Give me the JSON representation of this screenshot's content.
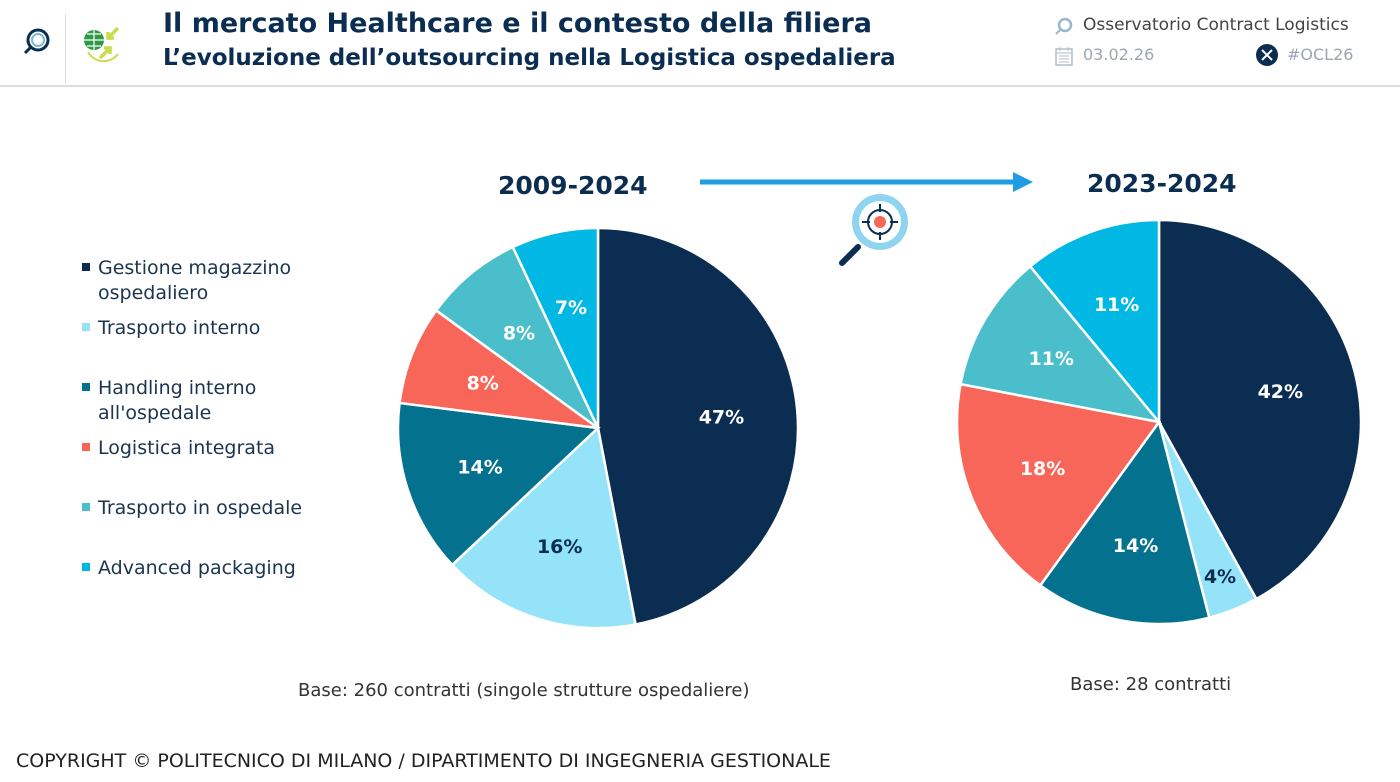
{
  "header": {
    "title": "Il mercato Healthcare e il contesto della filiera",
    "subtitle": "L’evoluzione dell’outsourcing nella Logistica ospedaliera",
    "org": "Osservatorio Contract Logistics",
    "date": "03.02.26",
    "hashtag": "#OCL26"
  },
  "footer": {
    "copyright": "COPYRIGHT © POLITECNICO DI MILANO / DIPARTIMENTO DI INGEGNERIA GESTIONALE"
  },
  "chart_data": [
    {
      "type": "pie",
      "title": "2009-2024",
      "note": "Base: 260 contratti (singole strutture ospedaliere)",
      "categories": [
        "Gestione magazzino ospedaliero",
        "Trasporto interno",
        "Handling interno all'ospedale",
        "Logistica integrata",
        "Trasporto in ospedale",
        "Advanced packaging"
      ],
      "values": [
        47,
        16,
        14,
        8,
        8,
        7
      ],
      "labels": [
        "47%",
        "16%",
        "14%",
        "8%",
        "8%",
        "7%"
      ],
      "legend": "left"
    },
    {
      "type": "pie",
      "title": "2023-2024",
      "note": "Base: 28 contratti",
      "categories": [
        "Gestione magazzino ospedaliero",
        "Trasporto interno",
        "Handling interno all'ospedale",
        "Logistica integrata",
        "Trasporto in ospedale",
        "Advanced packaging"
      ],
      "values": [
        42,
        4,
        14,
        18,
        11,
        11
      ],
      "labels": [
        "42%",
        "4%",
        "14%",
        "18%",
        "11%",
        "11%"
      ]
    }
  ],
  "legend": {
    "items": [
      {
        "label1": "Gestione magazzino",
        "label2": "ospedaliero"
      },
      {
        "label1": "Trasporto interno"
      },
      {
        "label1": "Handling interno",
        "label2": "all'ospedale"
      },
      {
        "label1": "Logistica integrata"
      },
      {
        "label1": "Trasporto in ospedale"
      },
      {
        "label1": "Advanced packaging"
      }
    ]
  },
  "colors": [
    "#0b2d52",
    "#94e3f8",
    "#04728f",
    "#f76659",
    "#4bbecb",
    "#00b8e3"
  ],
  "label_colors": [
    "#ffffff",
    "#0b2d52",
    "#ffffff",
    "#ffffff",
    "#ffffff",
    "#ffffff"
  ]
}
